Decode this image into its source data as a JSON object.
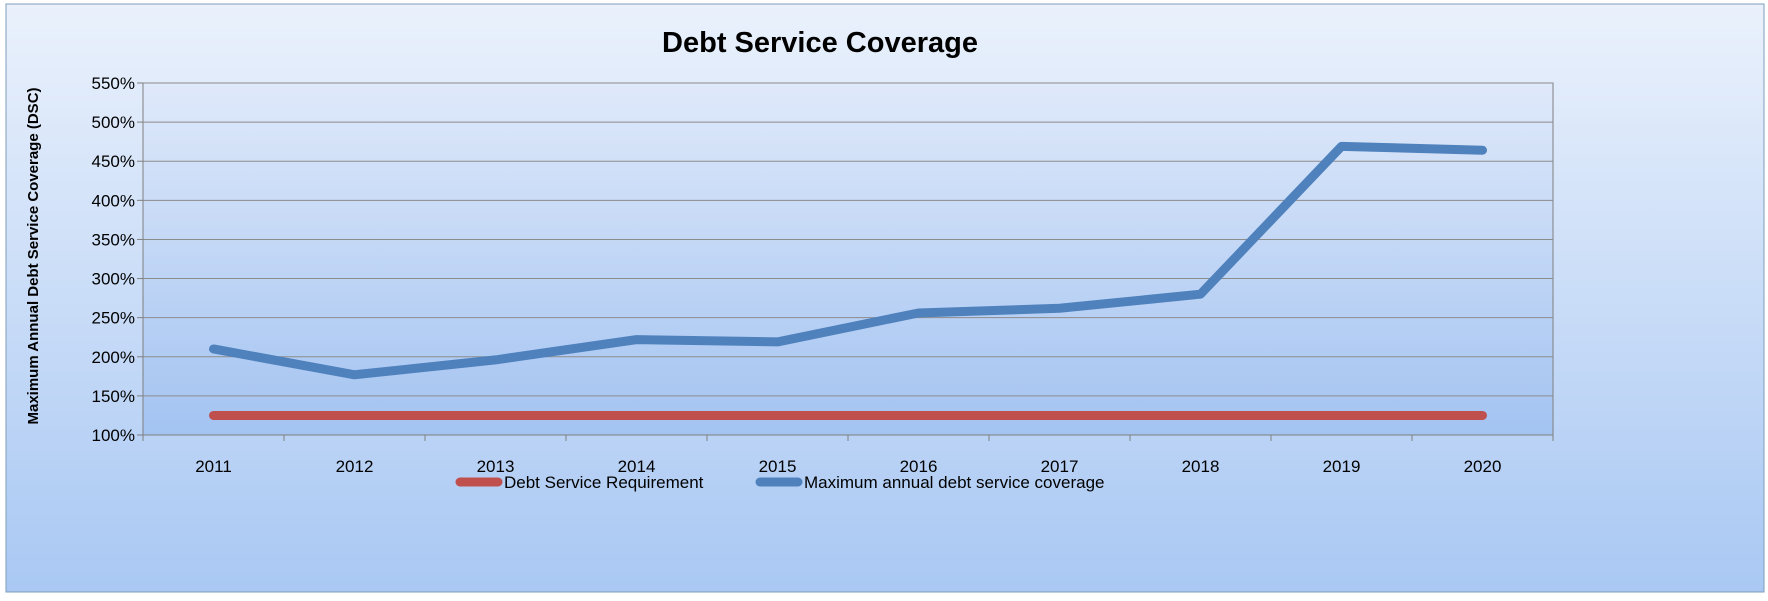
{
  "chart_data": {
    "type": "line",
    "title": "Debt Service Coverage",
    "xlabel": "",
    "ylabel": "Maximum Annual Debt Service Coverage (DSC)",
    "categories": [
      "2011",
      "2012",
      "2013",
      "2014",
      "2015",
      "2016",
      "2017",
      "2018",
      "2019",
      "2020"
    ],
    "ylim": [
      100,
      550
    ],
    "yticks": [
      100,
      150,
      200,
      250,
      300,
      350,
      400,
      450,
      500,
      550
    ],
    "ytick_labels": [
      "100%",
      "150%",
      "200%",
      "250%",
      "300%",
      "350%",
      "400%",
      "450%",
      "500%",
      "550%"
    ],
    "grid": true,
    "legend_position": "bottom",
    "series": [
      {
        "name": "Debt Service Requirement",
        "color": "#c0504d",
        "values": [
          125,
          125,
          125,
          125,
          125,
          125,
          125,
          125,
          125,
          125
        ]
      },
      {
        "name": "Maximum annual debt service coverage",
        "color": "#4f81bd",
        "values": [
          210,
          177,
          196,
          222,
          219,
          256,
          262,
          280,
          469,
          464
        ]
      }
    ]
  }
}
